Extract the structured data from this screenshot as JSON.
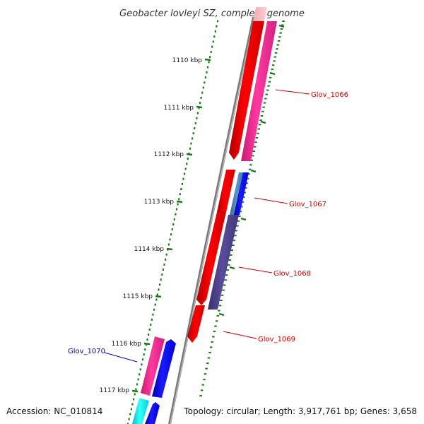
{
  "title": "Geobacter lovleyi SZ, complete genome",
  "footer": {
    "accession": "Accession: NC_010814",
    "topology": "Topology: circular; Length: 3,917,761 bp; Genes: 3,658"
  },
  "ticks": [
    {
      "label": "1110 kbp"
    },
    {
      "label": "1111 kbp"
    },
    {
      "label": "1112 kbp"
    },
    {
      "label": "1113 kbp"
    },
    {
      "label": "1114 kbp"
    },
    {
      "label": "1115 kbp"
    },
    {
      "label": "1116 kbp"
    },
    {
      "label": "1117 kbp"
    }
  ],
  "genes": [
    {
      "name": "Glov_1066",
      "color": "#cc0000"
    },
    {
      "name": "Glov_1067",
      "color": "#cc0000"
    },
    {
      "name": "Glov_1068",
      "color": "#cc0000"
    },
    {
      "name": "Glov_1069",
      "color": "#cc0000"
    },
    {
      "name": "Glov_1070",
      "color": "#0000aa"
    }
  ],
  "colors": {
    "cds": "#ff0000",
    "pink": "#ee2d8c",
    "blue": "#0000ee",
    "steelblue": "#4a7fb5",
    "slate": "#4b3f86",
    "cyan": "#00e5e5",
    "ruler": "#1a7a1a",
    "backbone": "#888888"
  }
}
